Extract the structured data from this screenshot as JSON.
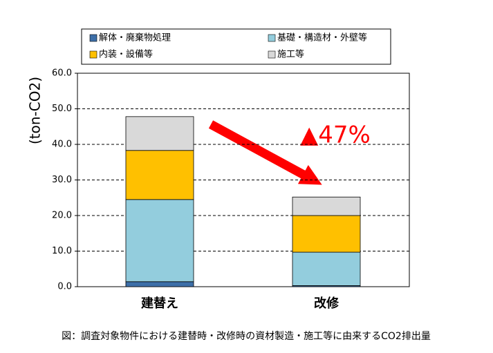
{
  "chart_data": {
    "type": "stacked-bar",
    "caption": "図：調査対象物件における建替時・改修時の資材製造・施工等に由来するCO2排出量",
    "ylabel": "(ton-CO2)",
    "annotation": "▲47%",
    "categories": [
      "建替え",
      "改修"
    ],
    "series": [
      {
        "name": "解体・廃棄物処理",
        "color": "#3d6fa8",
        "values": [
          1.4,
          0.3
        ]
      },
      {
        "name": "基礎・構造材・外壁等",
        "color": "#93cddd",
        "values": [
          23.1,
          9.4
        ]
      },
      {
        "name": "内装・設備等",
        "color": "#ffc000",
        "values": [
          13.8,
          10.3
        ]
      },
      {
        "name": "施工等",
        "color": "#d9d9d9",
        "values": [
          9.5,
          5.2
        ]
      }
    ],
    "ylim": [
      0,
      60
    ],
    "yticks": [
      {
        "value": 0,
        "label": "0.0"
      },
      {
        "value": 10,
        "label": "10.0"
      },
      {
        "value": 20,
        "label": "20.0"
      },
      {
        "value": 30,
        "label": "30.0"
      },
      {
        "value": 40,
        "label": "40.0"
      },
      {
        "value": 50,
        "label": "50.0"
      },
      {
        "value": 60,
        "label": "60.0"
      }
    ],
    "grid": true
  }
}
